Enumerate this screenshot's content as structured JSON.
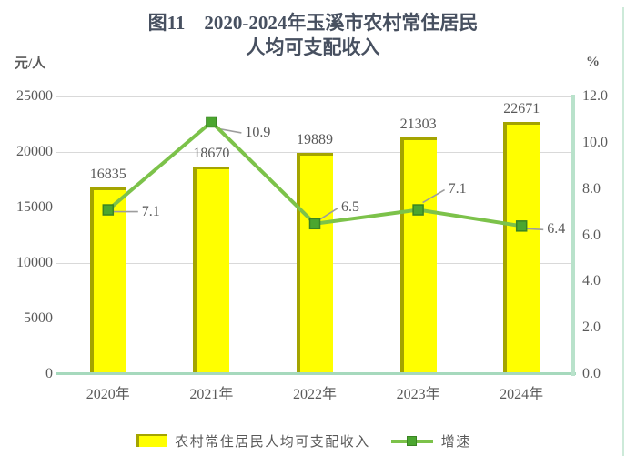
{
  "title": {
    "line1": "图11　2020-2024年玉溪市农村常住居民",
    "line2": "人均可支配收入"
  },
  "left_axis_unit": "元/人",
  "right_axis_unit": "%",
  "legend": {
    "bar_label": "农村常住居民人均可支配收入",
    "line_label": "增速"
  },
  "colors": {
    "title_text": "#475060",
    "axis_text": "#5a5a5a",
    "grid": "#d9d9d9",
    "axis_line": "#a6d9bd",
    "plot_border": "#b9e2cb",
    "page_edge": "#cdead9",
    "bar_fill": "#ffff00",
    "bar_border": "#a4a400",
    "line": "#7cc24a",
    "marker": "#4ba62f",
    "marker_border": "#3a8423",
    "leader": "#9d9d9d"
  },
  "chart_data": {
    "type": "bar",
    "subtype": "bar+line combo, dual axis",
    "title": "图11 2020-2024年玉溪市农村常住居民人均可支配收入",
    "categories": [
      "2020年",
      "2021年",
      "2022年",
      "2023年",
      "2024年"
    ],
    "series": [
      {
        "name": "农村常住居民人均可支配收入",
        "type": "bar",
        "axis": "left",
        "values": [
          16835,
          18670,
          19889,
          21303,
          22671
        ],
        "labels": [
          "16835",
          "18670",
          "19889",
          "21303",
          "22671"
        ]
      },
      {
        "name": "增速",
        "type": "line",
        "axis": "right",
        "values": [
          7.1,
          10.9,
          6.5,
          7.1,
          6.4
        ],
        "labels": [
          "7.1",
          "10.9",
          "6.5",
          "7.1",
          "6.4"
        ]
      }
    ],
    "left_axis": {
      "unit": "元/人",
      "min": 0,
      "max": 25000,
      "step": 5000,
      "tick_values": [
        25000,
        20000,
        15000,
        10000,
        5000,
        0
      ],
      "ticks": [
        "25000",
        "20000",
        "15000",
        "10000",
        "5000",
        "0"
      ]
    },
    "right_axis": {
      "unit": "%",
      "min": 0,
      "max": 12,
      "step": 2,
      "tick_values": [
        12,
        10,
        8,
        6,
        4,
        2,
        0
      ],
      "ticks": [
        "12.0",
        "10.0",
        "8.0",
        "6.0",
        "4.0",
        "2.0",
        "0.0"
      ]
    },
    "grid": true,
    "legend_position": "bottom"
  }
}
